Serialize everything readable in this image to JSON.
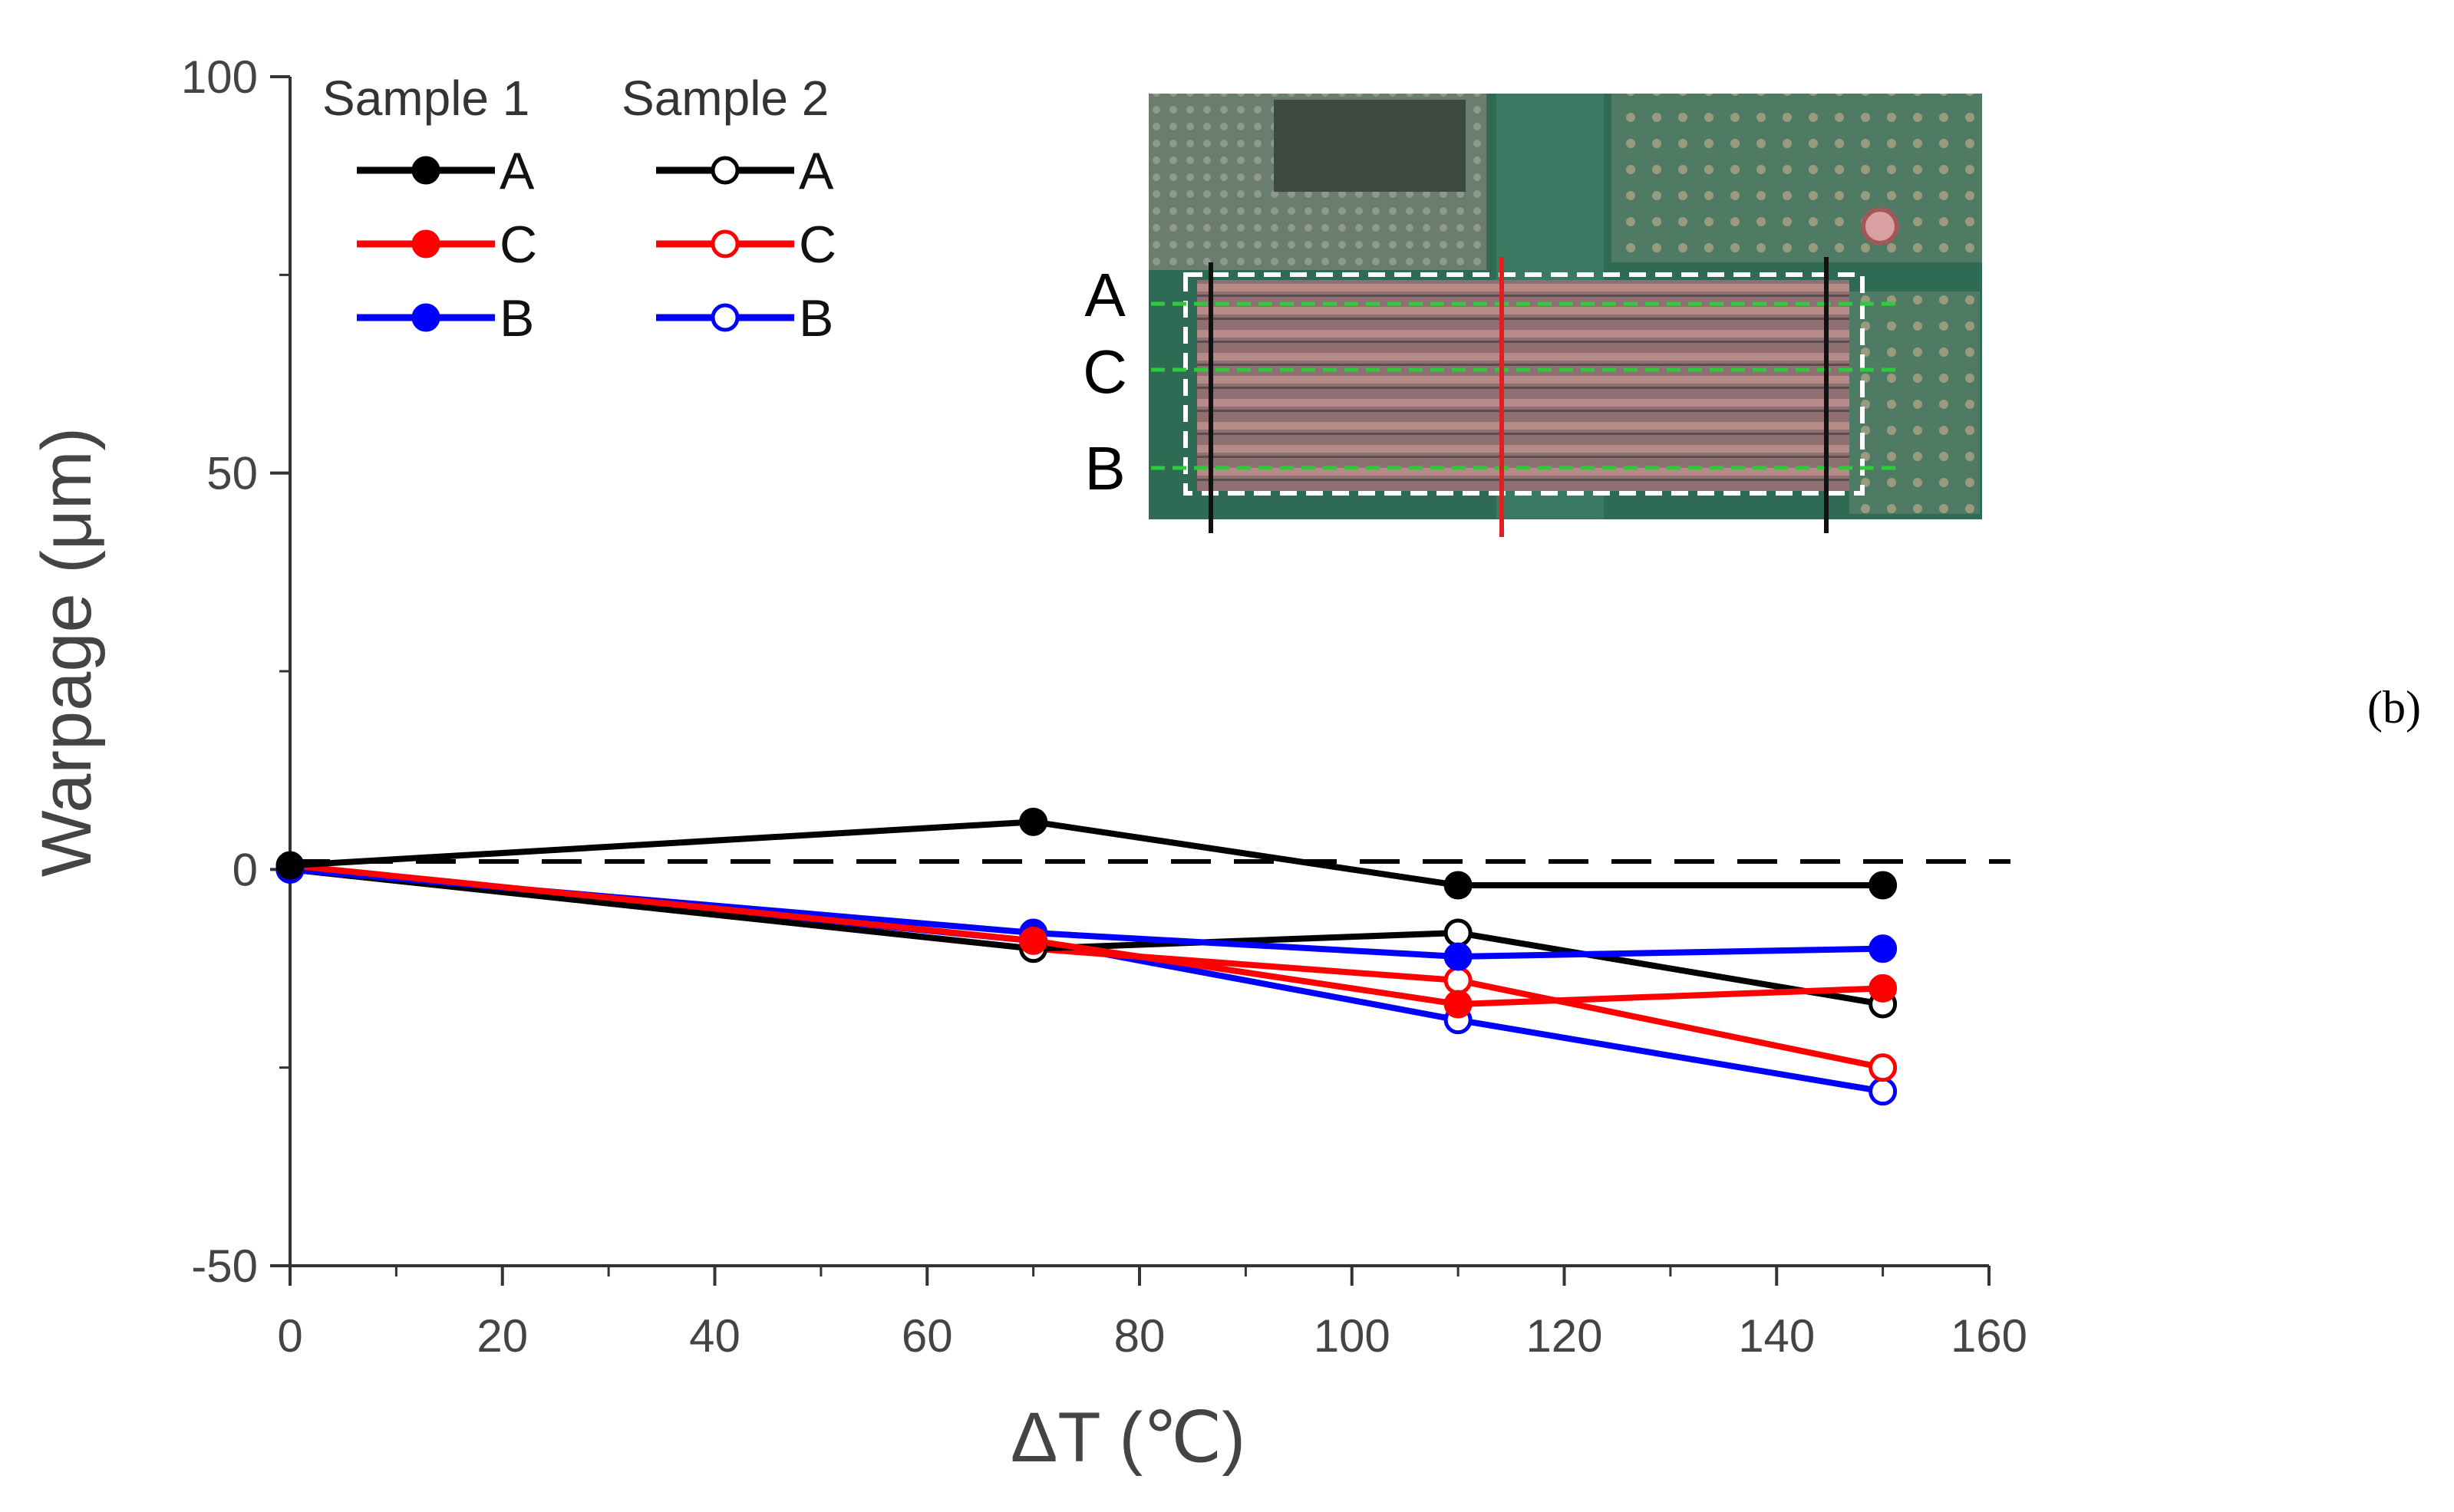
{
  "chart_data": {
    "type": "line",
    "title": "",
    "xlabel": "ΔT (℃)",
    "ylabel": "Warpage (μm)",
    "xlim": [
      0,
      160
    ],
    "ylim": [
      -50,
      100
    ],
    "x_ticks": [
      "0",
      "20",
      "40",
      "60",
      "80",
      "100",
      "120",
      "140",
      "160"
    ],
    "y_ticks": [
      "-50",
      "0",
      "50",
      "100"
    ],
    "reference_line": {
      "y": 1,
      "style": "dashed",
      "color": "#000000"
    },
    "x": [
      0,
      70,
      110,
      150
    ],
    "series": [
      {
        "name": "Sample 1 A",
        "sample": "Sample 1",
        "location": "A",
        "marker": "filled",
        "color": "#000000",
        "values": [
          0.5,
          6,
          -2,
          -2
        ]
      },
      {
        "name": "Sample 1 C",
        "sample": "Sample 1",
        "location": "C",
        "marker": "filled",
        "color": "#ff0000",
        "values": [
          0.5,
          -9,
          -17,
          -15
        ]
      },
      {
        "name": "Sample 1 B",
        "sample": "Sample 1",
        "location": "B",
        "marker": "filled",
        "color": "#0000ff",
        "values": [
          0,
          -8,
          -11,
          -10
        ]
      },
      {
        "name": "Sample 2 A",
        "sample": "Sample 2",
        "location": "A",
        "marker": "open",
        "color": "#000000",
        "values": [
          0,
          -10,
          -8,
          -17
        ]
      },
      {
        "name": "Sample 2 C",
        "sample": "Sample 2",
        "location": "C",
        "marker": "open",
        "color": "#ff0000",
        "values": [
          0,
          -10,
          -14,
          -25
        ]
      },
      {
        "name": "Sample 2 B",
        "sample": "Sample 2",
        "location": "B",
        "marker": "open",
        "color": "#0000ff",
        "values": [
          0,
          -9,
          -19,
          -28
        ]
      }
    ],
    "legend": {
      "placement": "top-left",
      "headers": [
        "Sample 1",
        "Sample 2"
      ],
      "entries": [
        "A",
        "C",
        "B"
      ]
    },
    "inset": {
      "description_labels": [
        "A",
        "C",
        "B"
      ]
    },
    "panel_label": "(b)"
  }
}
